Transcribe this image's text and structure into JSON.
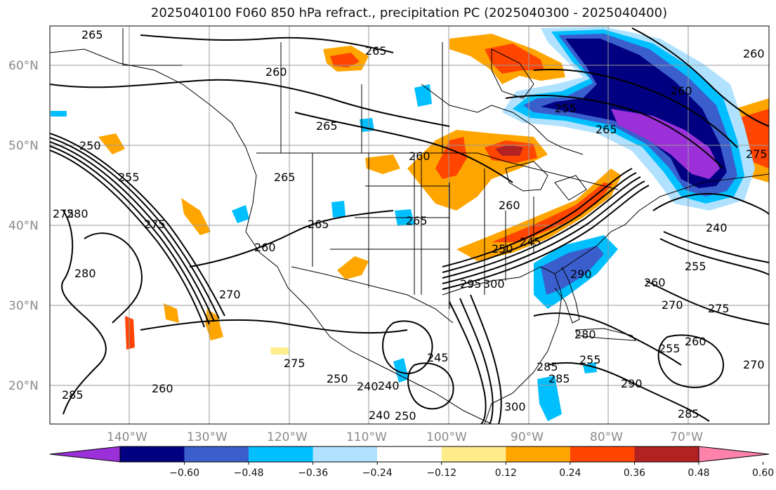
{
  "title": "2025040100 F060 850 hPa refract., precipitation PC (2025040300 - 2025040400)",
  "axes": {
    "lat_labels": [
      "60°N",
      "50°N",
      "40°N",
      "30°N",
      "20°N"
    ],
    "lon_labels": [
      "140°W",
      "130°W",
      "120°W",
      "110°W",
      "100°W",
      "90°W",
      "80°W",
      "70°W"
    ]
  },
  "colorbar": {
    "ticks": [
      "−0.60",
      "−0.48",
      "−0.36",
      "−0.24",
      "−0.12",
      "0.12",
      "0.24",
      "0.36",
      "0.48",
      "0.60"
    ],
    "colors": [
      "#9b30d9",
      "#000080",
      "#3a5fcd",
      "#00bfff",
      "#b0e2ff",
      "#ffffff",
      "#ffec8b",
      "#ffa500",
      "#ff4500",
      "#b22222",
      "#ff82ab"
    ]
  },
  "contour_labels": [
    "265",
    "260",
    "265",
    "260",
    "265",
    "250",
    "255",
    "260",
    "265",
    "260",
    "260",
    "255",
    "250",
    "245",
    "275",
    "280",
    "275",
    "280",
    "265",
    "270",
    "275",
    "260",
    "260",
    "285",
    "240",
    "250",
    "245",
    "240",
    "295",
    "300",
    "290",
    "280",
    "285",
    "265",
    "240",
    "255",
    "260",
    "270",
    "275",
    "255",
    "260",
    "290",
    "285",
    "300",
    "285",
    "270",
    "275",
    "265",
    "255",
    "240",
    "250"
  ]
}
